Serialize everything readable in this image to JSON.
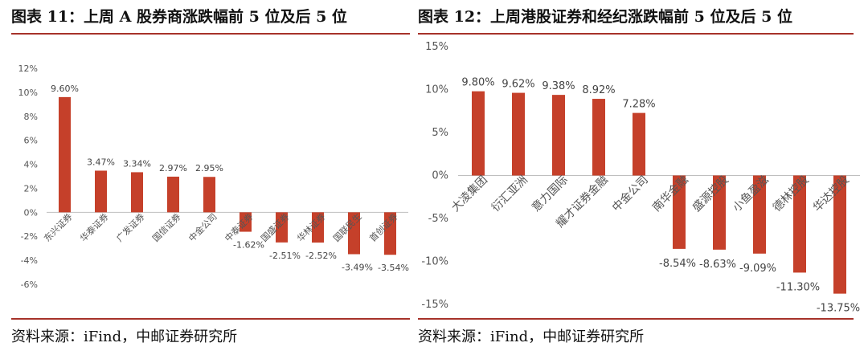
{
  "left": {
    "title": "图表 11：上周 A 股券商涨跌幅前 5 位及后 5 位",
    "source": "资料来源：iFind，中邮证券研究所"
  },
  "right": {
    "title": "图表 12：上周港股证券和经纪涨跌幅前 5 位及后 5 位",
    "source": "资料来源：iFind，中邮证券研究所"
  },
  "colors": {
    "bar": "#c5402a",
    "rule": "#a6322a",
    "axis": "#bfbfbf"
  },
  "chart_data": [
    {
      "type": "bar",
      "title": "图表 11：上周 A 股券商涨跌幅前 5 位及后 5 位",
      "categories": [
        "东兴证券",
        "华泰证券",
        "广发证券",
        "国信证券",
        "中金公司",
        "中泰证券",
        "国盛证券",
        "华林证券",
        "国联民生",
        "首创证券"
      ],
      "values": [
        9.6,
        3.47,
        3.34,
        2.97,
        2.95,
        -1.62,
        -2.51,
        -2.52,
        -3.49,
        -3.54
      ],
      "value_labels": [
        "9.60%",
        "3.47%",
        "3.34%",
        "2.97%",
        "2.95%",
        "-1.62%",
        "-2.51%",
        "-2.52%",
        "-3.49%",
        "-3.54%"
      ],
      "yticks": [
        "-6%",
        "-4%",
        "-2%",
        "0%",
        "2%",
        "4%",
        "6%",
        "8%",
        "10%",
        "12%"
      ],
      "ytick_values": [
        -6,
        -4,
        -2,
        0,
        2,
        4,
        6,
        8,
        10,
        12
      ],
      "ylim": [
        -6,
        12
      ],
      "xlabel": "",
      "ylabel": "",
      "grid": false
    },
    {
      "type": "bar",
      "title": "图表 12：上周港股证券和经纪涨跌幅前 5 位及后 5 位",
      "categories": [
        "大凌集团",
        "衍汇亚洲",
        "意力国际",
        "耀才证券金融",
        "中金公司",
        "南华金融",
        "盛源控股",
        "小鱼盈滋",
        "德林控股",
        "华达控股"
      ],
      "values": [
        9.8,
        9.62,
        9.38,
        8.92,
        7.28,
        -8.54,
        -8.63,
        -9.09,
        -11.3,
        -13.75
      ],
      "value_labels": [
        "9.80%",
        "9.62%",
        "9.38%",
        "8.92%",
        "7.28%",
        "-8.54%",
        "-8.63%",
        "-9.09%",
        "-11.30%",
        "-13.75%"
      ],
      "yticks": [
        "-15%",
        "-10%",
        "-5%",
        "0%",
        "5%",
        "10%",
        "15%"
      ],
      "ytick_values": [
        -15,
        -10,
        -5,
        0,
        5,
        10,
        15
      ],
      "ylim": [
        -15,
        15
      ],
      "xlabel": "",
      "ylabel": "",
      "grid": false
    }
  ]
}
